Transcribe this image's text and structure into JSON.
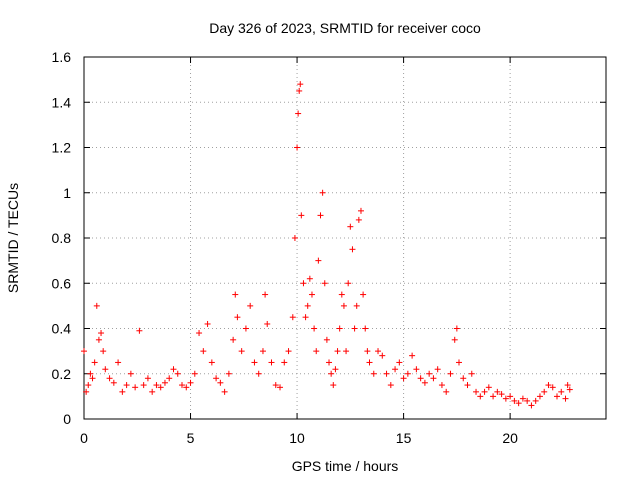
{
  "chart_data": {
    "type": "scatter",
    "title": "Day 326 of 2023, SRMTID for receiver coco",
    "xlabel": "GPS time / hours",
    "ylabel": "SRMTID / TECUs",
    "xlim": [
      0,
      24.5
    ],
    "ylim": [
      0,
      1.6
    ],
    "xticks": [
      0,
      5,
      10,
      15,
      20
    ],
    "xtick_labels": [
      "0",
      "5",
      "10",
      "15",
      "20"
    ],
    "yticks": [
      0,
      0.2,
      0.4,
      0.6,
      0.8,
      1.0,
      1.2,
      1.4,
      1.6
    ],
    "ytick_labels": [
      "0",
      "0.2",
      "0.4",
      "0.6",
      "0.8",
      "1",
      "1.2",
      "1.4",
      "1.6"
    ],
    "grid": true,
    "marker": "+",
    "marker_color": "#ff0000",
    "series": [
      {
        "name": "SRMTID",
        "x": [
          0.0,
          0.1,
          0.2,
          0.3,
          0.4,
          0.5,
          0.6,
          0.7,
          0.8,
          0.9,
          1.0,
          1.2,
          1.4,
          1.6,
          1.8,
          2.0,
          2.2,
          2.4,
          2.6,
          2.8,
          3.0,
          3.2,
          3.4,
          3.6,
          3.8,
          4.0,
          4.2,
          4.4,
          4.6,
          4.8,
          5.0,
          5.2,
          5.4,
          5.6,
          5.8,
          6.0,
          6.2,
          6.4,
          6.6,
          6.8,
          7.0,
          7.1,
          7.2,
          7.4,
          7.6,
          7.8,
          8.0,
          8.2,
          8.4,
          8.5,
          8.6,
          8.8,
          9.0,
          9.2,
          9.4,
          9.6,
          9.8,
          9.9,
          10.0,
          10.05,
          10.1,
          10.15,
          10.2,
          10.3,
          10.4,
          10.5,
          10.6,
          10.7,
          10.8,
          10.9,
          11.0,
          11.1,
          11.2,
          11.3,
          11.4,
          11.5,
          11.6,
          11.7,
          11.8,
          11.9,
          12.0,
          12.1,
          12.2,
          12.3,
          12.4,
          12.5,
          12.6,
          12.7,
          12.8,
          12.9,
          13.0,
          13.1,
          13.2,
          13.3,
          13.4,
          13.6,
          13.8,
          14.0,
          14.2,
          14.4,
          14.6,
          14.8,
          15.0,
          15.2,
          15.4,
          15.6,
          15.8,
          16.0,
          16.2,
          16.4,
          16.6,
          16.8,
          17.0,
          17.2,
          17.4,
          17.5,
          17.6,
          17.8,
          18.0,
          18.2,
          18.4,
          18.6,
          18.8,
          19.0,
          19.2,
          19.4,
          19.6,
          19.8,
          20.0,
          20.2,
          20.4,
          20.6,
          20.8,
          21.0,
          21.2,
          21.4,
          21.6,
          21.8,
          22.0,
          22.2,
          22.4,
          22.6,
          22.7,
          22.8
        ],
        "y": [
          0.3,
          0.12,
          0.15,
          0.2,
          0.18,
          0.25,
          0.5,
          0.35,
          0.38,
          0.3,
          0.22,
          0.18,
          0.16,
          0.25,
          0.12,
          0.15,
          0.2,
          0.14,
          0.39,
          0.15,
          0.18,
          0.12,
          0.15,
          0.14,
          0.16,
          0.18,
          0.22,
          0.2,
          0.15,
          0.14,
          0.16,
          0.2,
          0.38,
          0.3,
          0.42,
          0.25,
          0.18,
          0.16,
          0.12,
          0.2,
          0.35,
          0.55,
          0.45,
          0.3,
          0.4,
          0.5,
          0.25,
          0.2,
          0.3,
          0.55,
          0.42,
          0.25,
          0.15,
          0.14,
          0.25,
          0.3,
          0.45,
          0.8,
          1.2,
          1.35,
          1.45,
          1.48,
          0.9,
          0.6,
          0.45,
          0.5,
          0.62,
          0.55,
          0.4,
          0.3,
          0.7,
          0.9,
          1.0,
          0.6,
          0.35,
          0.25,
          0.2,
          0.15,
          0.22,
          0.3,
          0.4,
          0.55,
          0.5,
          0.3,
          0.6,
          0.85,
          0.75,
          0.4,
          0.5,
          0.88,
          0.92,
          0.55,
          0.4,
          0.3,
          0.25,
          0.2,
          0.3,
          0.28,
          0.2,
          0.15,
          0.22,
          0.25,
          0.18,
          0.2,
          0.28,
          0.22,
          0.18,
          0.16,
          0.2,
          0.18,
          0.22,
          0.15,
          0.12,
          0.2,
          0.35,
          0.4,
          0.25,
          0.18,
          0.15,
          0.2,
          0.12,
          0.1,
          0.12,
          0.14,
          0.1,
          0.12,
          0.11,
          0.09,
          0.1,
          0.08,
          0.07,
          0.09,
          0.08,
          0.06,
          0.08,
          0.1,
          0.12,
          0.15,
          0.14,
          0.1,
          0.12,
          0.09,
          0.15,
          0.13
        ]
      }
    ]
  }
}
